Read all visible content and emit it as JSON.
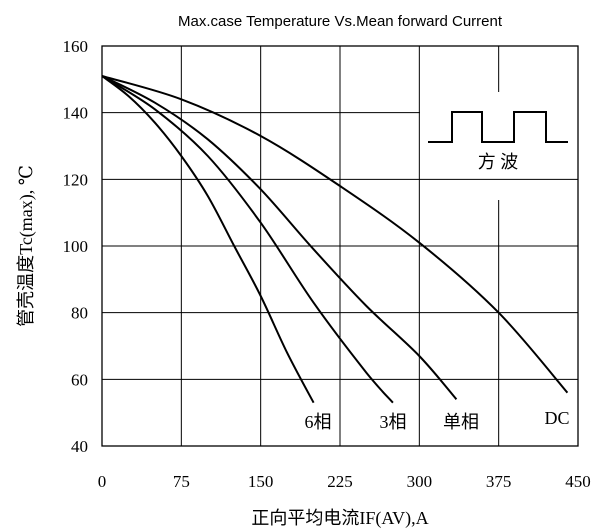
{
  "chart_data": {
    "type": "line",
    "title": "Max.case Temperature Vs.Mean forward Current",
    "xlabel": "正向平均电流IF(AV),A",
    "ylabel": "管壳温度Tc(max), ℃",
    "xlim": [
      0,
      450
    ],
    "ylim": [
      40,
      160
    ],
    "x_ticks": [
      "0",
      "75",
      "150",
      "225",
      "300",
      "375",
      "450"
    ],
    "y_ticks": [
      "40",
      "60",
      "80",
      "100",
      "120",
      "140",
      "160"
    ],
    "grid": true,
    "legend": "none",
    "inset_label": "方 波",
    "series": [
      {
        "name": "6相",
        "x": [
          0,
          25,
          50,
          75,
          100,
          125,
          150,
          175,
          200
        ],
        "y": [
          151,
          145,
          137,
          127,
          115,
          100,
          85,
          68,
          53
        ]
      },
      {
        "name": "3相",
        "x": [
          0,
          50,
          100,
          150,
          200,
          250,
          275
        ],
        "y": [
          151,
          141,
          127,
          107,
          83,
          62,
          53
        ]
      },
      {
        "name": "单相",
        "x": [
          0,
          50,
          100,
          150,
          200,
          250,
          300,
          335
        ],
        "y": [
          151,
          143,
          132,
          117,
          99,
          82,
          67,
          54
        ]
      },
      {
        "name": "DC",
        "x": [
          0,
          75,
          150,
          225,
          300,
          375,
          440
        ],
        "y": [
          151,
          144,
          133,
          118,
          101,
          80,
          56
        ]
      }
    ]
  }
}
